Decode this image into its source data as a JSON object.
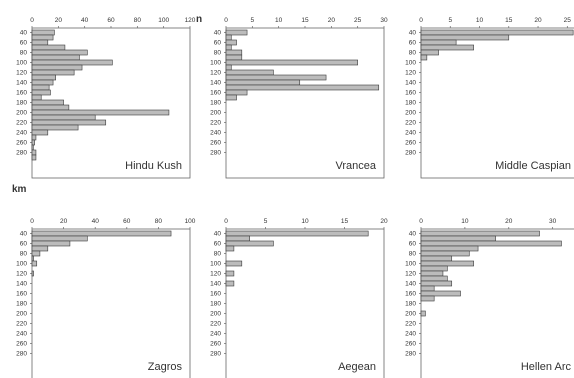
{
  "labels": {
    "count_axis": "n",
    "depth_axis": "km"
  },
  "colors": {
    "bar_fill": "#bcbcbc",
    "bar_stroke": "#3a3a3a",
    "frame": "#666666",
    "text": "#333333"
  },
  "chart_data": [
    {
      "type": "bar",
      "orientation": "horizontal",
      "title": "Hindu Kush",
      "xlim": [
        0,
        120
      ],
      "xticks": [
        "0",
        "20",
        "40",
        "60",
        "80",
        "100",
        "120"
      ],
      "categories": [
        40,
        50,
        60,
        70,
        80,
        90,
        100,
        110,
        120,
        130,
        140,
        150,
        160,
        170,
        180,
        190,
        200,
        210,
        220,
        230,
        240,
        250,
        260,
        270,
        280,
        290
      ],
      "values": [
        17,
        16,
        12,
        25,
        42,
        36,
        61,
        38,
        32,
        18,
        16,
        13,
        14,
        7,
        24,
        28,
        104,
        48,
        56,
        35,
        12,
        3,
        2,
        1,
        3,
        3
      ],
      "ylim": [
        40,
        290
      ],
      "yticks": [
        "40",
        "60",
        "80",
        "100",
        "120",
        "140",
        "160",
        "180",
        "200",
        "220",
        "240",
        "260",
        "280"
      ]
    },
    {
      "type": "bar",
      "orientation": "horizontal",
      "title": "Vrancea",
      "xlim": [
        0,
        30
      ],
      "xticks": [
        "0",
        "5",
        "10",
        "15",
        "20",
        "25",
        "30"
      ],
      "categories": [
        40,
        50,
        60,
        70,
        80,
        90,
        100,
        110,
        120,
        130,
        140,
        150,
        160,
        170
      ],
      "values": [
        4,
        1,
        2,
        1,
        3,
        3,
        25,
        1,
        9,
        19,
        14,
        29,
        4,
        2
      ],
      "ylim": [
        40,
        290
      ],
      "yticks": [
        "40",
        "60",
        "80",
        "100",
        "120",
        "140",
        "160",
        "180",
        "200",
        "220",
        "240",
        "260",
        "280"
      ]
    },
    {
      "type": "bar",
      "orientation": "horizontal",
      "title": "Middle Caspian",
      "xlim": [
        0,
        27
      ],
      "xticks": [
        "0",
        "5",
        "10",
        "15",
        "20",
        "25"
      ],
      "categories": [
        40,
        50,
        60,
        70,
        80,
        90
      ],
      "values": [
        26,
        15,
        6,
        9,
        3,
        1
      ],
      "ylim": [
        40,
        290
      ],
      "yticks": [
        "40",
        "60",
        "80",
        "100",
        "120",
        "140",
        "160",
        "180",
        "200",
        "220",
        "240",
        "260",
        "280"
      ]
    },
    {
      "type": "bar",
      "orientation": "horizontal",
      "title": "Zagros",
      "xlim": [
        0,
        100
      ],
      "xticks": [
        "0",
        "20",
        "40",
        "60",
        "80",
        "100"
      ],
      "categories": [
        40,
        50,
        60,
        70,
        80,
        90,
        100,
        110,
        120
      ],
      "values": [
        88,
        35,
        24,
        10,
        5,
        1,
        3,
        0,
        1
      ],
      "ylim": [
        40,
        290
      ],
      "yticks": [
        "40",
        "60",
        "80",
        "100",
        "120",
        "140",
        "160",
        "180",
        "200",
        "220",
        "240",
        "260",
        "280"
      ]
    },
    {
      "type": "bar",
      "orientation": "horizontal",
      "title": "Aegean",
      "xlim": [
        0,
        20
      ],
      "xticks": [
        "0",
        "5",
        "10",
        "15",
        "20"
      ],
      "categories": [
        40,
        50,
        60,
        70,
        80,
        90,
        100,
        110,
        120,
        130,
        140
      ],
      "values": [
        18,
        3,
        6,
        1,
        0,
        0,
        2,
        0,
        1,
        0,
        1
      ],
      "ylim": [
        40,
        290
      ],
      "yticks": [
        "40",
        "60",
        "80",
        "100",
        "120",
        "140",
        "160",
        "180",
        "200",
        "220",
        "240",
        "260",
        "280"
      ]
    },
    {
      "type": "bar",
      "orientation": "horizontal",
      "title": "Hellen Arc",
      "xlim": [
        0,
        36
      ],
      "xticks": [
        "0",
        "10",
        "20",
        "30"
      ],
      "categories": [
        40,
        50,
        60,
        70,
        80,
        90,
        100,
        110,
        120,
        130,
        140,
        150,
        160,
        170,
        180,
        190,
        200
      ],
      "values": [
        27,
        17,
        32,
        13,
        11,
        7,
        12,
        6,
        5,
        6,
        7,
        3,
        9,
        3,
        0,
        0,
        1
      ],
      "ylim": [
        40,
        290
      ],
      "yticks": [
        "40",
        "60",
        "80",
        "100",
        "120",
        "140",
        "160",
        "180",
        "200",
        "220",
        "240",
        "260",
        "280"
      ]
    }
  ]
}
